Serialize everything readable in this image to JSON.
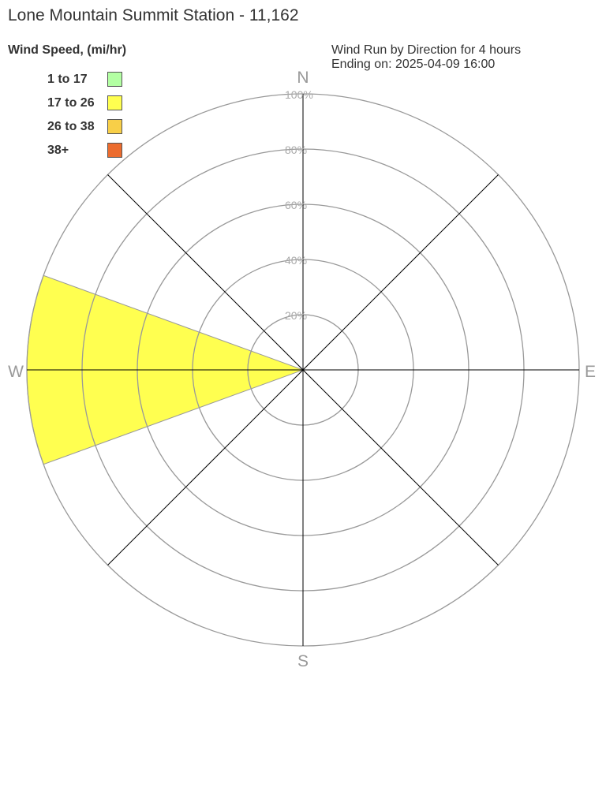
{
  "chart_data": {
    "type": "wind-rose",
    "title": "Lone Mountain Summit Station - 11,162",
    "subtitle": [
      "Wind Run by Direction for 4 hours",
      "Ending on: 2025-04-09 16:00"
    ],
    "legend_title": "Wind Speed, (mi/hr)",
    "bins": [
      {
        "label": "1 to 17",
        "color": "#b3ffa3"
      },
      {
        "label": "17 to 26",
        "color": "#ffff50"
      },
      {
        "label": "26 to 38",
        "color": "#f8cf48"
      },
      {
        "label": "38+",
        "color": "#ec6c2e"
      }
    ],
    "directions": [
      "N",
      "E",
      "S",
      "W"
    ],
    "ring_labels": [
      "20%",
      "40%",
      "60%",
      "80%",
      "100%"
    ],
    "rlim": [
      0,
      100
    ],
    "wedges": [
      {
        "direction": "W",
        "bin": "17 to 26",
        "percent": 100
      }
    ]
  }
}
